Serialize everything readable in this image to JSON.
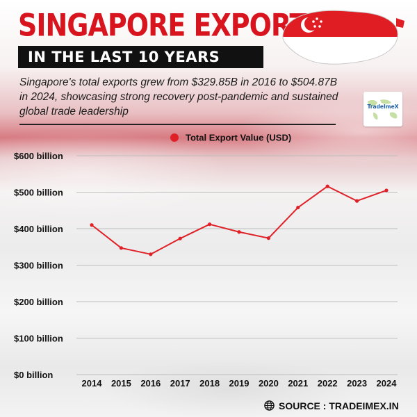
{
  "header": {
    "title": "SINGAPORE EXPORTS",
    "subtitle": "IN THE LAST 10 YEARS",
    "description": "Singapore's total exports grew from $329.85B in 2016 to $504.87B in 2024, showcasing strong recovery post-pandemic and sustained global trade leadership"
  },
  "logo": {
    "text": "TradeImeX",
    "icon": "tradeimex-logo"
  },
  "map": {
    "icon": "singapore-flag-map",
    "colors": {
      "red": "#e11d24",
      "white": "#ffffff"
    }
  },
  "source": {
    "text": "SOURCE : TRADEIMEX.IN",
    "icon": "globe-icon"
  },
  "colors": {
    "accent": "#d8141e",
    "line": "#e02027",
    "banner": "#111111"
  },
  "chart_data": {
    "type": "line",
    "categories": [
      "2014",
      "2015",
      "2016",
      "2017",
      "2018",
      "2019",
      "2020",
      "2021",
      "2022",
      "2023",
      "2024"
    ],
    "series": [
      {
        "name": "Total Export Value (USD)",
        "values": [
          410,
          347,
          329.85,
          373,
          412,
          391,
          374,
          458,
          516,
          476,
          504.87
        ]
      }
    ],
    "ylim": [
      0,
      600
    ],
    "y_ticks": [
      0,
      100,
      200,
      300,
      400,
      500,
      600
    ],
    "y_tick_labels": [
      "$0 billion",
      "$100 billion",
      "$200 billion",
      "$300 billion",
      "$400 billion",
      "$500 billion",
      "$600 billion"
    ],
    "legend": "top-center",
    "grid": true
  }
}
